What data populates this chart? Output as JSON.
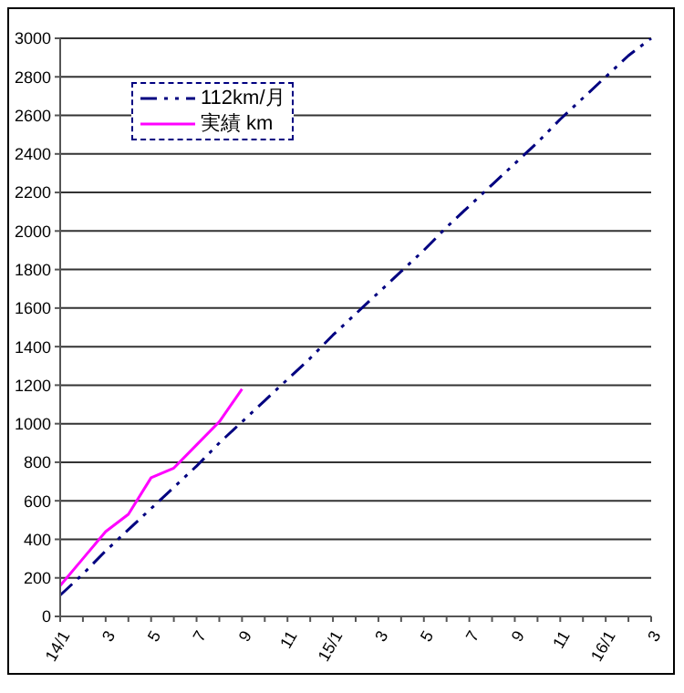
{
  "chart_data": {
    "type": "line",
    "categories": [
      "14/1",
      null,
      "3",
      null,
      "5",
      null,
      "7",
      null,
      "9",
      null,
      "11",
      null,
      "15/1",
      null,
      "3",
      null,
      "5",
      null,
      "7",
      null,
      "9",
      null,
      "11",
      null,
      "16/1",
      null,
      "3"
    ],
    "series": [
      {
        "name": "112km/月",
        "color": "#000080",
        "line_style": "dashed",
        "values": [
          110,
          220,
          340,
          450,
          560,
          670,
          780,
          900,
          1010,
          1120,
          1230,
          1340,
          1460,
          1570,
          1680,
          1790,
          1900,
          2020,
          2130,
          2240,
          2350,
          2460,
          2580,
          2690,
          2800,
          2910,
          3000
        ]
      },
      {
        "name": "実績 km",
        "color": "#ff00ff",
        "line_style": "solid",
        "values": [
          160,
          300,
          440,
          530,
          720,
          770,
          890,
          1010,
          1180,
          null,
          null,
          null,
          null,
          null,
          null,
          null,
          null,
          null,
          null,
          null,
          null,
          null,
          null,
          null,
          null,
          null,
          null
        ]
      }
    ],
    "ylim": [
      0,
      3000
    ],
    "yticks": [
      0,
      200,
      400,
      600,
      800,
      1000,
      1200,
      1400,
      1600,
      1800,
      2000,
      2200,
      2400,
      2600,
      2800,
      3000
    ],
    "grid": "y",
    "legend": "top left",
    "marker": "none"
  }
}
